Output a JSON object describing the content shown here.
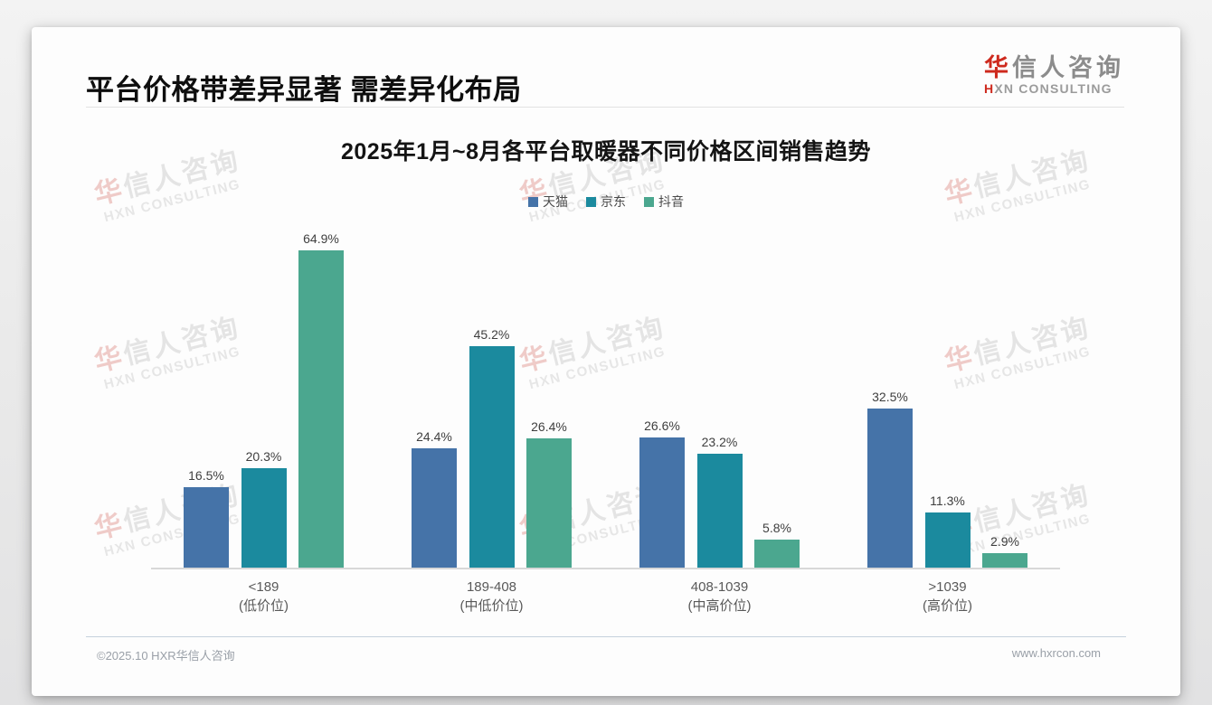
{
  "slide": {
    "title": "平台价格带差异显著 需差异化布局",
    "logo": {
      "cn_accent": "华",
      "cn_rest": "信人咨询",
      "en_accent": "H",
      "en_rest": "XN CONSULTING"
    },
    "footer": {
      "copyright": "©2025.10 HXR华信人咨询",
      "website": "www.hxrcon.com"
    },
    "watermark": {
      "line1_accent": "华",
      "line1_rest": "信人咨询",
      "line2": "HXN CONSULTING"
    },
    "colors": {
      "logo_accent": "#ce2a1e",
      "axis": "#d8d8d8",
      "footer_divider": "#c6d1dd"
    }
  },
  "chart_data": {
    "type": "bar",
    "title": "2025年1月~8月各平台取暖器不同价格区间销售趋势",
    "categories": [
      {
        "range": "<189",
        "tier": "(低价位)"
      },
      {
        "range": "189-408",
        "tier": "(中低价位)"
      },
      {
        "range": "408-1039",
        "tier": "(中高价位)"
      },
      {
        "range": ">1039",
        "tier": "(高价位)"
      }
    ],
    "series": [
      {
        "name": "天猫",
        "color": "#4573A8",
        "values": [
          16.5,
          24.4,
          26.6,
          32.5
        ]
      },
      {
        "name": "京东",
        "color": "#1B8A9E",
        "values": [
          20.3,
          45.2,
          23.2,
          11.3
        ]
      },
      {
        "name": "抖音",
        "color": "#4BA78F",
        "values": [
          64.9,
          26.4,
          5.8,
          2.9
        ]
      }
    ],
    "value_suffix": "%",
    "ylabel": "",
    "xlabel": "",
    "ylim": [
      0,
      70
    ],
    "grid": false,
    "value_labels": true,
    "legend_position": "top-center"
  }
}
